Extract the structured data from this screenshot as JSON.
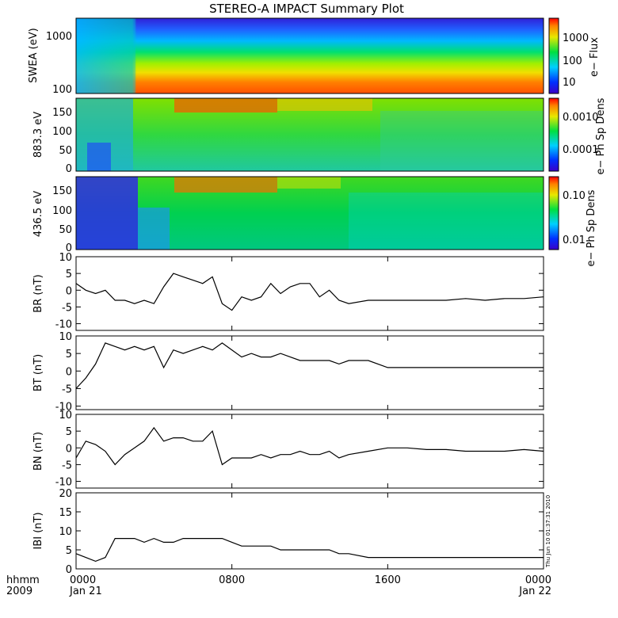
{
  "title": "STEREO-A IMPACT Summary Plot",
  "time_axis": {
    "label_row1": "hhmm",
    "label_row2": "2009",
    "ticks": [
      {
        "t": 0,
        "hhmm": "0000",
        "date": "Jan 21"
      },
      {
        "t": 8,
        "hhmm": "0800",
        "date": ""
      },
      {
        "t": 16,
        "hhmm": "1600",
        "date": ""
      },
      {
        "t": 24,
        "hhmm": "0000",
        "date": "Jan 22"
      }
    ],
    "range_hours": [
      0,
      24
    ]
  },
  "timestamp": "Thu Jun 10 01:37:31 2010",
  "colors": {
    "line": "#000000",
    "frame": "#000000"
  },
  "spectrograms": [
    {
      "ylabel": "SWEA (eV)",
      "yticks": [
        "100",
        "1000"
      ],
      "colorbar_label": "e− Flux",
      "colorbar_ticks": [
        "10",
        "100",
        "1000"
      ]
    },
    {
      "ylabel": "883.3 eV",
      "yticks": [
        "0",
        "50",
        "100",
        "150"
      ],
      "colorbar_label": "e− Ph Sp Dens",
      "colorbar_ticks": [
        "0.0001",
        "0.0010"
      ]
    },
    {
      "ylabel": "436.5 eV",
      "yticks": [
        "0",
        "50",
        "100",
        "150"
      ],
      "colorbar_label": "e− Ph Sp Dens",
      "colorbar_ticks": [
        "0.01",
        "0.10"
      ]
    }
  ],
  "chart_data": [
    {
      "type": "line",
      "name": "BR",
      "ylabel": "BR (nT)",
      "ylim": [
        -12,
        10
      ],
      "yticks": [
        "-10",
        "-5",
        "0",
        "5",
        "10"
      ],
      "x": [
        0,
        0.5,
        1,
        1.5,
        2,
        2.5,
        3,
        3.5,
        4,
        4.5,
        5,
        5.5,
        6,
        6.5,
        7,
        7.5,
        8,
        8.5,
        9,
        9.5,
        10,
        10.5,
        11,
        11.5,
        12,
        12.5,
        13,
        13.5,
        14,
        15,
        16,
        17,
        18,
        19,
        20,
        21,
        22,
        23,
        24
      ],
      "y": [
        2,
        0,
        -1,
        0,
        -3,
        -3,
        -4,
        -3,
        -4,
        1,
        5,
        4,
        3,
        2,
        4,
        -4,
        -6,
        -2,
        -3,
        -2,
        2,
        -1,
        1,
        2,
        2,
        -2,
        0,
        -3,
        -4,
        -3,
        -3,
        -3,
        -3,
        -3,
        -2.5,
        -3,
        -2.5,
        -2.5,
        -2
      ]
    },
    {
      "type": "line",
      "name": "BT",
      "ylabel": "BT (nT)",
      "ylim": [
        -11,
        10
      ],
      "yticks": [
        "-10",
        "-5",
        "0",
        "5",
        "10"
      ],
      "x": [
        0,
        0.5,
        1,
        1.5,
        2,
        2.5,
        3,
        3.5,
        4,
        4.5,
        5,
        5.5,
        6,
        6.5,
        7,
        7.5,
        8,
        8.5,
        9,
        9.5,
        10,
        10.5,
        11,
        11.5,
        12,
        12.5,
        13,
        13.5,
        14,
        15,
        16,
        17,
        18,
        19,
        20,
        21,
        22,
        23,
        24
      ],
      "y": [
        -5,
        -2,
        2,
        8,
        7,
        6,
        7,
        6,
        7,
        1,
        6,
        5,
        6,
        7,
        6,
        8,
        6,
        4,
        5,
        4,
        4,
        5,
        4,
        3,
        3,
        3,
        3,
        2,
        3,
        3,
        1,
        1,
        1,
        1,
        1,
        1,
        1,
        1,
        1
      ],
      "y_note": ""
    },
    {
      "type": "line",
      "name": "BN",
      "ylabel": "BN (nT)",
      "ylim": [
        -12,
        10
      ],
      "yticks": [
        "-10",
        "-5",
        "0",
        "5",
        "10"
      ],
      "x": [
        0,
        0.5,
        1,
        1.5,
        2,
        2.5,
        3,
        3.5,
        4,
        4.5,
        5,
        5.5,
        6,
        6.5,
        7,
        7.5,
        8,
        8.5,
        9,
        9.5,
        10,
        10.5,
        11,
        11.5,
        12,
        12.5,
        13,
        13.5,
        14,
        15,
        16,
        17,
        18,
        19,
        20,
        21,
        22,
        23,
        24
      ],
      "y": [
        -3,
        2,
        1,
        -1,
        -5,
        -2,
        0,
        2,
        6,
        2,
        3,
        3,
        2,
        2,
        5,
        -5,
        -3,
        -3,
        -3,
        -2,
        -3,
        -2,
        -2,
        -1,
        -2,
        -2,
        -1,
        -3,
        -2,
        -1,
        0,
        0,
        -0.5,
        -0.5,
        -1,
        -1,
        -1,
        -0.5,
        -1
      ]
    },
    {
      "type": "line",
      "name": "|B|",
      "ylabel": "IBI (nT)",
      "ylim": [
        0,
        20
      ],
      "yticks": [
        "0",
        "5",
        "10",
        "15",
        "20"
      ],
      "x": [
        0,
        0.5,
        1,
        1.5,
        2,
        2.5,
        3,
        3.5,
        4,
        4.5,
        5,
        5.5,
        6,
        6.5,
        7,
        7.5,
        8,
        8.5,
        9,
        9.5,
        10,
        10.5,
        11,
        11.5,
        12,
        12.5,
        13,
        13.5,
        14,
        15,
        16,
        17,
        18,
        19,
        20,
        21,
        22,
        23,
        24
      ],
      "y": [
        4,
        3,
        2,
        3,
        8,
        8,
        8,
        7,
        8,
        7,
        7,
        8,
        8,
        8,
        8,
        8,
        7,
        6,
        6,
        6,
        6,
        5,
        5,
        5,
        5,
        5,
        5,
        4,
        4,
        3,
        3,
        3,
        3,
        3,
        3,
        3,
        3,
        3,
        3
      ]
    }
  ]
}
